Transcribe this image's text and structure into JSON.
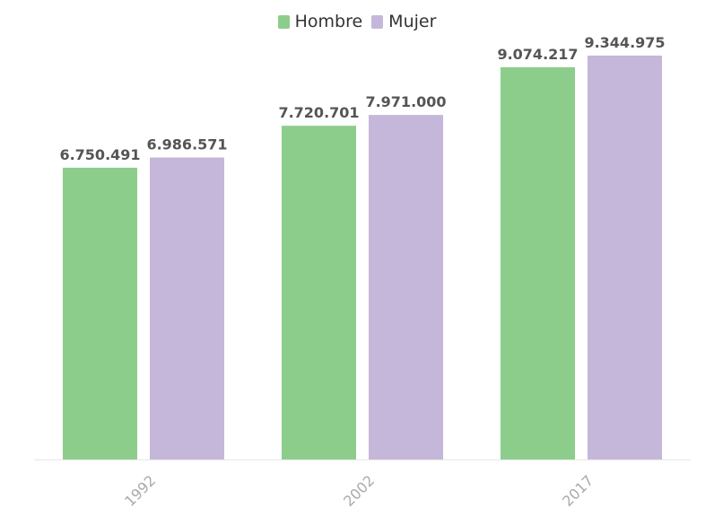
{
  "chart_data": {
    "type": "bar",
    "categories": [
      "1992",
      "2002",
      "2017"
    ],
    "series": [
      {
        "name": "Hombre",
        "values": [
          6750491,
          7720701,
          9074217
        ],
        "labels": [
          "6.750.491",
          "7.720.701",
          "9.074.217"
        ],
        "color": "#8ccd8c"
      },
      {
        "name": "Mujer",
        "values": [
          6986571,
          7971000,
          9344975
        ],
        "labels": [
          "6.986.571",
          "7.971.000",
          "9.344.975"
        ],
        "color": "#c5b7d9"
      }
    ],
    "title": "",
    "xlabel": "",
    "ylabel": "",
    "ylim": [
      0,
      9800000
    ],
    "grid": false,
    "legend": "top-center"
  }
}
